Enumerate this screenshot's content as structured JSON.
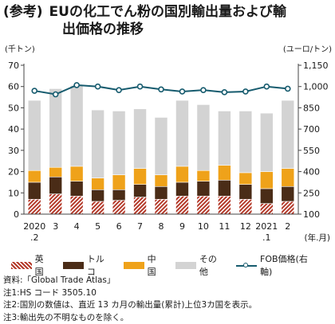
{
  "title": {
    "prefix": "(参考)",
    "line1": "EUの化工でん粉の国別輸出量および輸",
    "line2": "出価格の推移"
  },
  "chart_data": {
    "type": "bar",
    "stacked": true,
    "categories": [
      "2020\n.2",
      "3",
      "4",
      "5",
      "6",
      "7",
      "8",
      "9",
      "10",
      "11",
      "12",
      "2021\n.1",
      "2"
    ],
    "category_labels_top": [
      "2020",
      "3",
      "4",
      "5",
      "6",
      "7",
      "8",
      "9",
      "10",
      "11",
      "12",
      "2021",
      "2"
    ],
    "category_labels_bottom": [
      ".2",
      "",
      "",
      "",
      "",
      "",
      "",
      "",
      "",
      "",
      "",
      ".1",
      ""
    ],
    "x_unit": "(年.月)",
    "left_axis": {
      "unit": "(千トン)",
      "ylim": [
        0,
        70
      ],
      "ticks": [
        0,
        10,
        20,
        30,
        40,
        50,
        60,
        70
      ]
    },
    "right_axis": {
      "unit": "(ユーロ/トン)",
      "ylim": [
        100,
        1150
      ],
      "ticks": [
        "100",
        "250",
        "400",
        "550",
        "700",
        "850",
        "1,000",
        "1,150"
      ]
    },
    "grid": false,
    "series": [
      {
        "name": "英国",
        "color": "#b43a2a",
        "pattern": "hatch",
        "values": [
          7,
          9.5,
          8.5,
          6,
          6.5,
          8,
          7,
          8.5,
          8.5,
          8.5,
          7,
          5,
          6
        ]
      },
      {
        "name": "トルコ",
        "color": "#4a2c17",
        "values": [
          8,
          8,
          7,
          5.5,
          5,
          6,
          6,
          6.5,
          7,
          7.5,
          7,
          7,
          7
        ]
      },
      {
        "name": "中国",
        "color": "#efa21a",
        "values": [
          5.5,
          4.5,
          7,
          5.5,
          7,
          7.5,
          5.5,
          7.5,
          5,
          7,
          5.5,
          8,
          8.5
        ]
      },
      {
        "name": "その他",
        "color": "#d3d3d3",
        "values": [
          33,
          37,
          38,
          32,
          30,
          28,
          27,
          31,
          31,
          25.5,
          29,
          27.5,
          32
        ]
      }
    ],
    "line_series": {
      "name": "FOB価格(右軸)",
      "axis": "right",
      "color": "#165b6e",
      "values": [
        970,
        945,
        1010,
        1000,
        975,
        1000,
        980,
        965,
        975,
        960,
        965,
        1000,
        985
      ]
    }
  },
  "legend": {
    "uk": "英国",
    "turkey": "トルコ",
    "china": "中国",
    "other": "その他",
    "price": "FOB価格(右軸)"
  },
  "notes": {
    "source": "資料:「Global Trade Atlas」",
    "note1": "注1:HS コード 3505.10",
    "note2": "注2:国別の数値は、直近 13 カ月の輸出量(累計)上位3カ国を表示。",
    "note3": "注3:輸出先の不明なものを除く。"
  }
}
